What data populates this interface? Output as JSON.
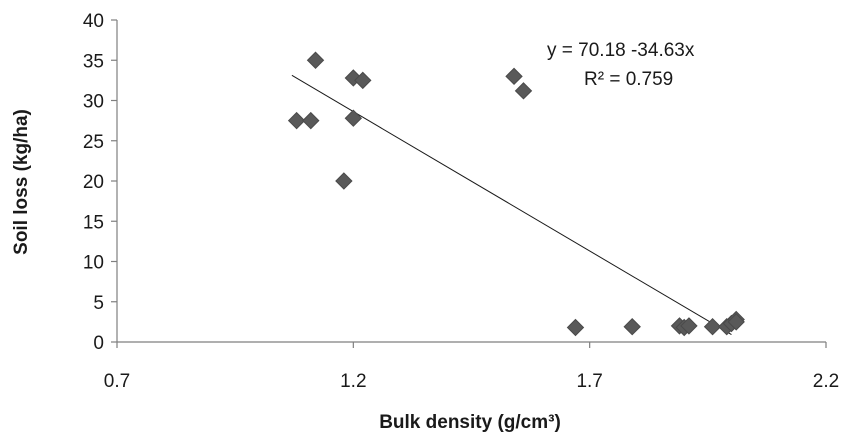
{
  "chart_data": {
    "type": "scatter",
    "title": "",
    "xlabel": "Bulk density (g/cm³)",
    "ylabel": "Soil loss (kg/ha)",
    "xlim": [
      0.7,
      2.2
    ],
    "ylim": [
      0,
      40
    ],
    "xticks": [
      0.7,
      1.2,
      1.7,
      2.2
    ],
    "xtick_labels": [
      "0.7",
      "1.2",
      "1.7",
      "2.2"
    ],
    "yticks": [
      0,
      5,
      10,
      15,
      20,
      25,
      30,
      35,
      40
    ],
    "ytick_labels": [
      "0",
      "5",
      "10",
      "15",
      "20",
      "25",
      "30",
      "35",
      "40"
    ],
    "grid": false,
    "legend": "none",
    "marker_color": "#595959",
    "trendline_color": "#1a1a1a",
    "points": [
      {
        "x": 1.08,
        "y": 27.5
      },
      {
        "x": 1.11,
        "y": 27.5
      },
      {
        "x": 1.12,
        "y": 35.0
      },
      {
        "x": 1.18,
        "y": 20.0
      },
      {
        "x": 1.2,
        "y": 27.8
      },
      {
        "x": 1.2,
        "y": 32.8
      },
      {
        "x": 1.22,
        "y": 32.5
      },
      {
        "x": 1.54,
        "y": 33.0
      },
      {
        "x": 1.56,
        "y": 31.2
      },
      {
        "x": 1.67,
        "y": 1.8
      },
      {
        "x": 1.79,
        "y": 1.9
      },
      {
        "x": 1.89,
        "y": 2.0
      },
      {
        "x": 1.9,
        "y": 1.8
      },
      {
        "x": 1.91,
        "y": 2.0
      },
      {
        "x": 1.96,
        "y": 1.9
      },
      {
        "x": 1.99,
        "y": 1.9
      },
      {
        "x": 2.0,
        "y": 2.3
      },
      {
        "x": 2.01,
        "y": 2.8
      },
      {
        "x": 2.01,
        "y": 2.5
      }
    ],
    "trendline": {
      "slope": -34.63,
      "intercept": 70.18,
      "x_range": [
        1.07,
        2.0
      ],
      "equation_label": "y = 70.18 -34.63x",
      "r2_label": "R² = 0.759"
    }
  }
}
